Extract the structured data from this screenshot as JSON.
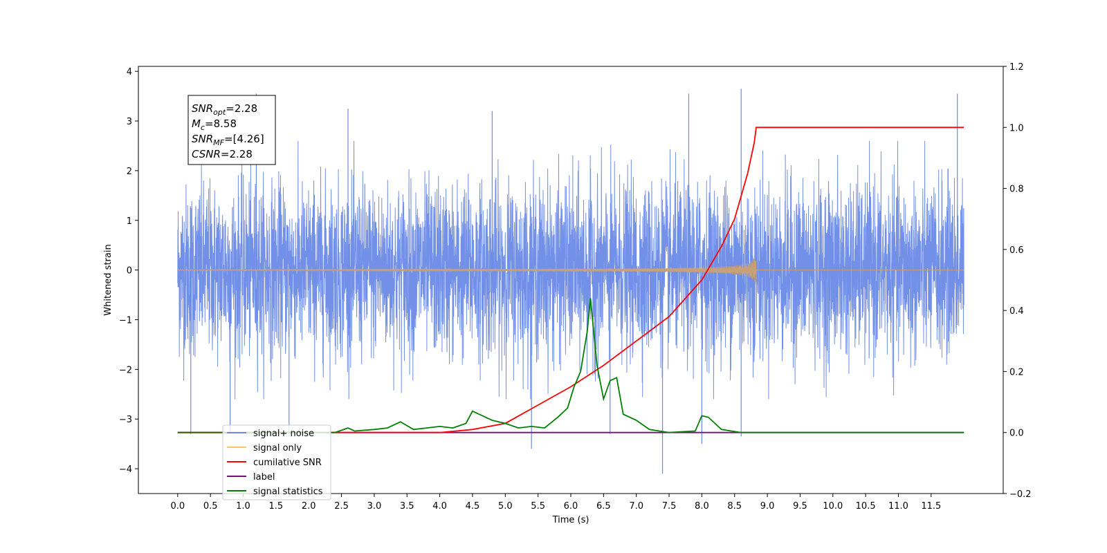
{
  "chart_data": {
    "type": "line",
    "title": "",
    "xlabel": "Time (s)",
    "ylabel": "Whitened strain",
    "xlim": [
      -0.6,
      12.6
    ],
    "ylim_left": [
      -4.5,
      4.1
    ],
    "ylim_right": [
      -0.2,
      1.2
    ],
    "x_ticks": [
      0.0,
      0.5,
      1.0,
      1.5,
      2.0,
      2.5,
      3.0,
      3.5,
      4.0,
      4.5,
      5.0,
      5.5,
      6.0,
      6.5,
      7.0,
      7.5,
      8.0,
      8.5,
      9.0,
      9.5,
      10.0,
      10.5,
      11.0,
      11.5
    ],
    "x_tick_labels": [
      "0.0",
      "0.5",
      "1.0",
      "1.5",
      "2.0",
      "2.5",
      "3.0",
      "3.5",
      "4.0",
      "4.5",
      "5.0",
      "5.5",
      "6.0",
      "6.5",
      "7.0",
      "7.5",
      "8.0",
      "8.5",
      "9.0",
      "9.5",
      "10.0",
      "10.5",
      "11.0",
      "11.5"
    ],
    "y_left_ticks": [
      4,
      3,
      2,
      1,
      0,
      -1,
      -2,
      -3,
      -4
    ],
    "y_left_tick_labels": [
      "4",
      "3",
      "2",
      "1",
      "0",
      "−1",
      "−2",
      "−3",
      "−4"
    ],
    "y_right_ticks": [
      1.2,
      1.0,
      0.8,
      0.6,
      0.4,
      0.2,
      0.0,
      -0.2
    ],
    "y_right_tick_labels": [
      "1.2",
      "1.0",
      "0.8",
      "0.6",
      "0.4",
      "0.2",
      "0.0",
      "−0.2"
    ],
    "grid": false,
    "legend_position": "lower-left",
    "series": [
      {
        "name": "signal+ noise",
        "axis": "left",
        "color": "#6a8ae6",
        "description_only": "dense noise approx uniform over 0 to 12 s, amplitude about 2",
        "x_range": [
          0.0,
          12.0
        ],
        "noise_sigma": 0.85,
        "spikes": [
          [
            1.2,
            3.55
          ],
          [
            2.6,
            3.25
          ],
          [
            4.8,
            3.2
          ],
          [
            7.8,
            3.55
          ],
          [
            8.6,
            3.65
          ],
          [
            11.9,
            3.55
          ],
          [
            0.2,
            -3.3
          ],
          [
            5.4,
            -3.6
          ],
          [
            6.6,
            -3.3
          ],
          [
            7.4,
            -4.1
          ],
          [
            8.0,
            -3.5
          ],
          [
            8.6,
            -3.35
          ],
          [
            0.8,
            -3.3
          ],
          [
            1.7,
            -3.3
          ]
        ]
      },
      {
        "name": "signal only",
        "axis": "left",
        "color": "#c8a07a",
        "x_range": [
          0.0,
          12.0
        ],
        "chirp_end": 8.83,
        "max_amplitude": 0.3
      },
      {
        "name": "cumilative SNR",
        "axis": "right",
        "color": "#ff0000",
        "x": [
          0.0,
          3.0,
          4.0,
          4.5,
          5.0,
          5.5,
          6.0,
          6.5,
          7.0,
          7.5,
          8.0,
          8.3,
          8.5,
          8.7,
          8.8,
          8.83,
          9.0,
          10.0,
          11.0,
          12.0
        ],
        "y": [
          0.0,
          0.0,
          0.0,
          0.01,
          0.03,
          0.09,
          0.15,
          0.22,
          0.3,
          0.38,
          0.5,
          0.61,
          0.7,
          0.85,
          0.95,
          1.0,
          1.0,
          1.0,
          1.0,
          1.0
        ]
      },
      {
        "name": "label",
        "axis": "right",
        "color": "#7b0a7b",
        "x": [
          0.0,
          12.0
        ],
        "y": [
          0.0,
          0.0
        ]
      },
      {
        "name": "signal statistics",
        "axis": "right",
        "color": "#008000",
        "x": [
          0.0,
          2.4,
          2.6,
          2.7,
          3.0,
          3.2,
          3.4,
          3.6,
          3.8,
          4.0,
          4.2,
          4.4,
          4.5,
          4.6,
          4.8,
          5.0,
          5.2,
          5.4,
          5.6,
          5.8,
          5.95,
          6.05,
          6.15,
          6.25,
          6.3,
          6.4,
          6.5,
          6.6,
          6.7,
          6.8,
          7.0,
          7.2,
          7.5,
          7.9,
          8.0,
          8.1,
          8.3,
          8.6,
          9.0,
          12.0
        ],
        "y": [
          0.0,
          0.0,
          0.015,
          0.005,
          0.01,
          0.015,
          0.035,
          0.01,
          0.015,
          0.02,
          0.015,
          0.03,
          0.07,
          0.06,
          0.04,
          0.03,
          0.015,
          0.02,
          0.015,
          0.05,
          0.08,
          0.15,
          0.2,
          0.33,
          0.44,
          0.22,
          0.11,
          0.17,
          0.18,
          0.06,
          0.04,
          0.01,
          0.0,
          0.005,
          0.055,
          0.05,
          0.01,
          0.0,
          0.0,
          0.0
        ]
      }
    ],
    "legend": [
      "signal+ noise",
      "signal only",
      "cumilative SNR",
      "label",
      "signal statistics"
    ],
    "annotation": {
      "lines": [
        {
          "sym": "SNR",
          "sub": "opt",
          "value": "=2.28"
        },
        {
          "sym": "M",
          "sub": "c",
          "value": "=8.58"
        },
        {
          "sym": "SNR",
          "sub": "MF",
          "value": "=[4.26]"
        },
        {
          "sym": "CSNR",
          "sub": "",
          "value": "=2.28"
        }
      ]
    },
    "colors": {
      "noise": "#6a8ae6",
      "signal": "#c8a07a",
      "cumulative": "#ff0000",
      "label": "#7b0a7b",
      "stats": "#008000",
      "signal_legend": "#f7c56a"
    }
  }
}
